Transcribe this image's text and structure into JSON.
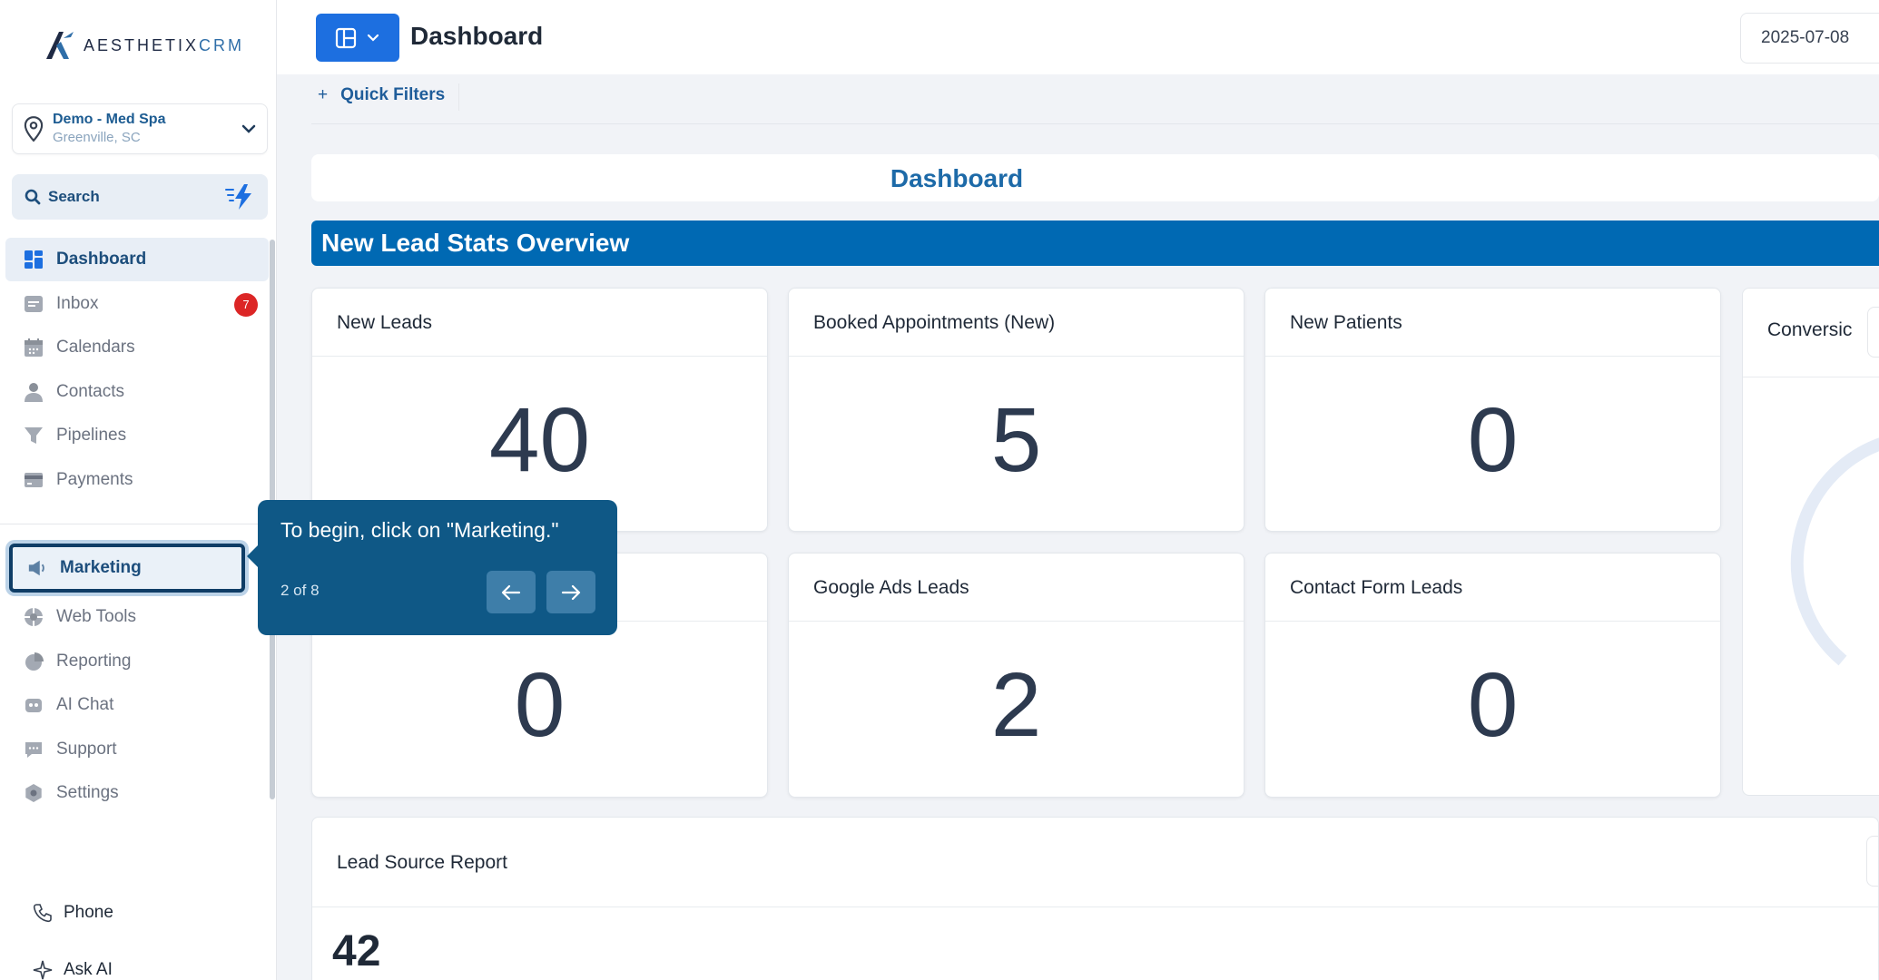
{
  "brand": {
    "name": "AESTHETIX",
    "suffix": "CRM"
  },
  "location": {
    "name": "Demo - Med Spa",
    "city": "Greenville, SC"
  },
  "search": {
    "label": "Search"
  },
  "nav": [
    {
      "label": "Dashboard",
      "icon": "grid-icon",
      "active": true
    },
    {
      "label": "Inbox",
      "icon": "inbox-icon",
      "badge": "7"
    },
    {
      "label": "Calendars",
      "icon": "calendar-icon"
    },
    {
      "label": "Contacts",
      "icon": "person-icon"
    },
    {
      "label": "Pipelines",
      "icon": "funnel-icon"
    },
    {
      "label": "Payments",
      "icon": "card-icon"
    }
  ],
  "nav2": [
    {
      "label": "Marketing",
      "icon": "megaphone-icon",
      "focused": true
    },
    {
      "label": "Web Tools",
      "icon": "webtools-icon"
    },
    {
      "label": "Reporting",
      "icon": "pie-icon"
    },
    {
      "label": "AI Chat",
      "icon": "robot-icon"
    },
    {
      "label": "Support",
      "icon": "chat-icon"
    },
    {
      "label": "Settings",
      "icon": "gear-icon"
    }
  ],
  "bottom": {
    "phone": "Phone",
    "ask_ai": "Ask AI"
  },
  "header": {
    "title": "Dashboard",
    "date": "2025-07-08"
  },
  "filters": {
    "quick_filters": "Quick Filters"
  },
  "dashboard": {
    "title": "Dashboard",
    "section": "New Lead Stats Overview"
  },
  "cards": [
    {
      "title": "New Leads",
      "value": "40"
    },
    {
      "title": "Booked Appointments (New)",
      "value": "5"
    },
    {
      "title": "New Patients",
      "value": "0"
    },
    {
      "title": "",
      "value": "0"
    },
    {
      "title": "Google Ads Leads",
      "value": "2"
    },
    {
      "title": "Contact Form Leads",
      "value": "0"
    }
  ],
  "conversion": {
    "title": "Conversic"
  },
  "lead_source": {
    "title": "Lead Source Report",
    "value": "42"
  },
  "tooltip": {
    "text": "To begin, click on \"Marketing.\"",
    "step": "2 of 8"
  },
  "colors": {
    "primary": "#0069b3",
    "tooltip": "#0f5886",
    "button": "#1d6fe0",
    "badge": "#dc2626"
  }
}
